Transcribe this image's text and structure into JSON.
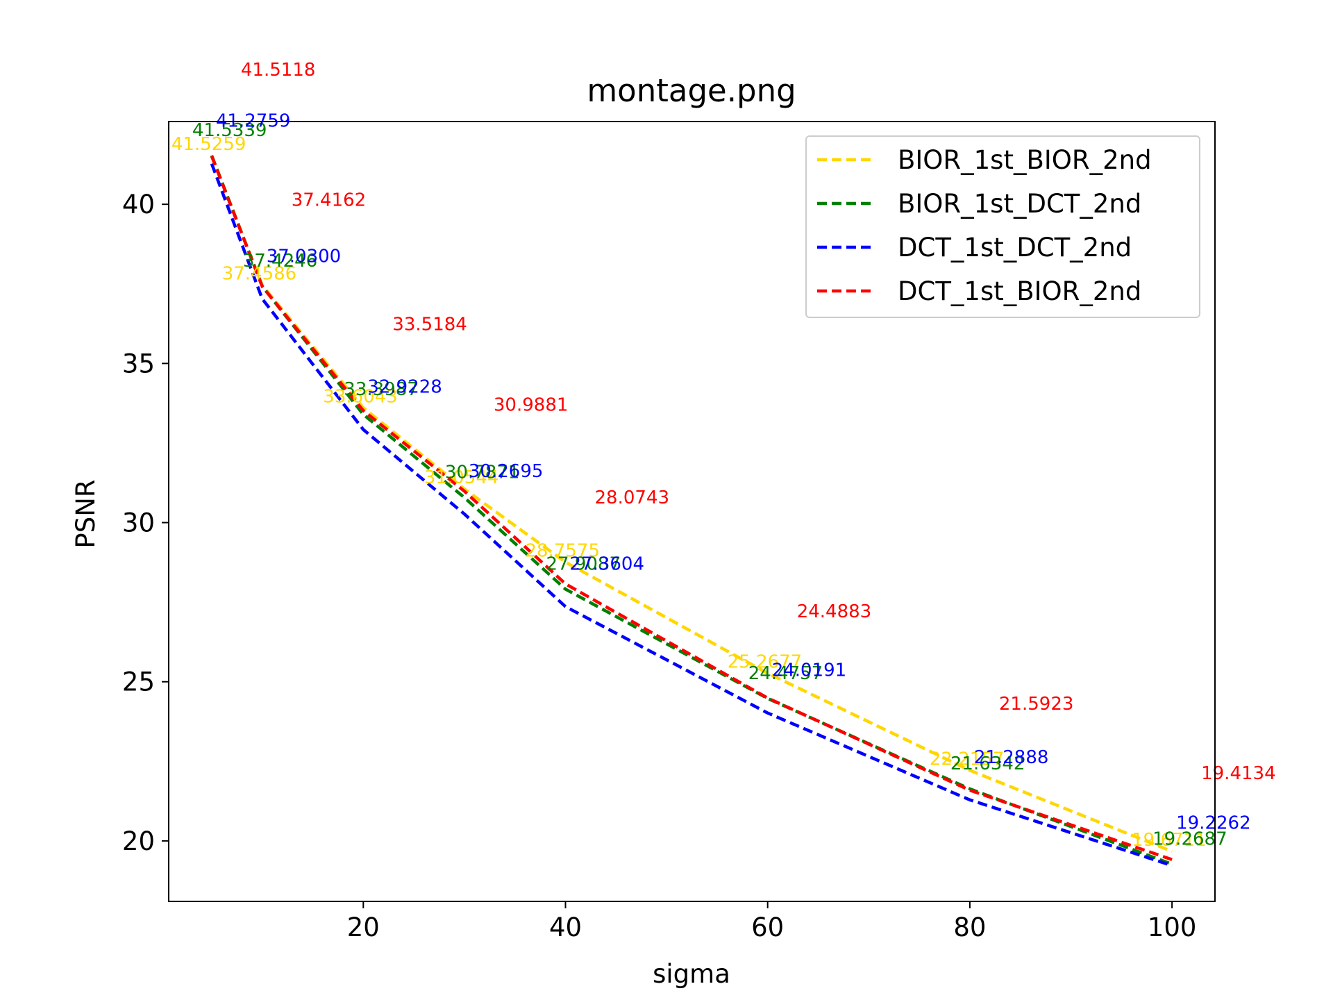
{
  "chart_data": {
    "type": "line",
    "title": "montage.png",
    "xlabel": "sigma",
    "ylabel": "PSNR",
    "xlim": [
      0.75,
      104.25
    ],
    "ylim": [
      18.1,
      42.6
    ],
    "x_ticks": [
      20,
      40,
      60,
      80,
      100
    ],
    "y_ticks": [
      20,
      25,
      30,
      35,
      40
    ],
    "grid": false,
    "legend_position": "top-right",
    "x": [
      5,
      10,
      20,
      30,
      40,
      60,
      80,
      100
    ],
    "series": [
      {
        "name": "BIOR_1st_BIOR_2nd",
        "color": "#FFD700",
        "style": "dashed",
        "values": [
          41.5259,
          37.4586,
          33.6043,
          31.0544,
          28.7575,
          25.2677,
          22.2157,
          19.6711
        ],
        "labels": [
          "41.5259",
          "37.4586",
          "33.6043",
          "31.0544",
          "28.7575",
          "25.2677",
          "22.2157",
          "19.6711"
        ]
      },
      {
        "name": "BIOR_1st_DCT_2nd",
        "color": "#008000",
        "style": "dashed",
        "values": [
          41.5339,
          37.4246,
          33.3987,
          30.7871,
          27.9087,
          24.4757,
          21.6342,
          19.2687
        ],
        "labels": [
          "41.5339",
          "37.4246",
          "33.3987",
          "30.7871",
          "27.9087",
          "24.4757",
          "21.6342",
          "19.2687"
        ]
      },
      {
        "name": "DCT_1st_DCT_2nd",
        "color": "#0000FF",
        "style": "dashed",
        "values": [
          41.2759,
          37.03,
          32.9228,
          30.2695,
          27.3604,
          24.0191,
          21.2888,
          19.2262
        ],
        "labels": [
          "41.2759",
          "37.0300",
          "32.9228",
          "30.2695",
          "27.3604",
          "24.0191",
          "21.2888",
          "19.2262"
        ]
      },
      {
        "name": "DCT_1st_BIOR_2nd",
        "color": "#FF0000",
        "style": "dashed",
        "values": [
          41.5118,
          37.4162,
          33.5184,
          30.9881,
          28.0743,
          24.4883,
          21.5923,
          19.4134
        ],
        "labels": [
          "41.5118",
          "37.4162",
          "33.5184",
          "30.9881",
          "28.0743",
          "24.4883",
          "21.5923",
          "19.4134"
        ]
      }
    ]
  }
}
